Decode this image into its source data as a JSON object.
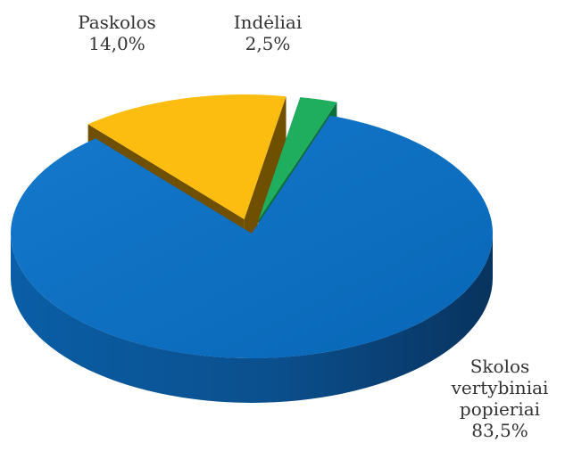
{
  "chart_data": {
    "type": "pie",
    "style": "3d-exploded",
    "slices": [
      {
        "label": "Skolos vertybiniai popieriai",
        "label_lines": [
          "Skolos",
          "vertybiniai",
          "popieriai"
        ],
        "value": 83.5,
        "value_text": "83,5%",
        "color": "#0a6fc2",
        "side_color": "#0b4c86"
      },
      {
        "label": "Paskolos",
        "label_lines": [
          "Paskolos"
        ],
        "value": 14.0,
        "value_text": "14,0%",
        "color": "#fdbd10",
        "side_color": "#6e5000"
      },
      {
        "label": "Indėliai",
        "label_lines": [
          "Indėliai"
        ],
        "value": 2.5,
        "value_text": "2,5%",
        "color": "#1fad5e",
        "side_color": "#0f6d3a"
      }
    ],
    "legend": "none",
    "grid": false
  }
}
